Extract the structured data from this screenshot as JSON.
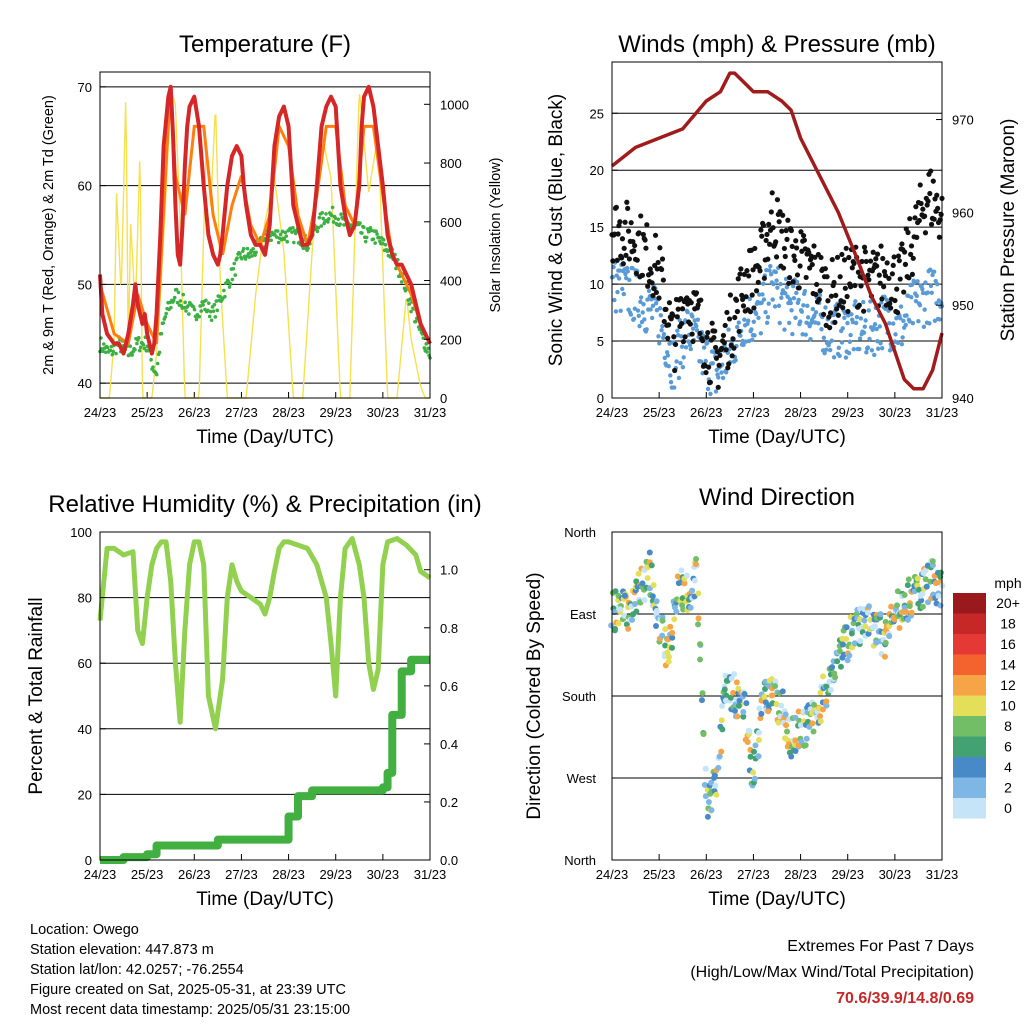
{
  "footer": {
    "location": "Location: Owego",
    "elevation": "Station elevation: 447.873 m",
    "latlon": "Station lat/lon: 42.0257; -76.2554",
    "created": "Figure created on Sat, 2025-05-31, at 23:39 UTC",
    "recent": "Most recent data timestamp: 2025/05/31 23:15:00"
  },
  "extremes": {
    "title": "Extremes For Past 7 Days",
    "subtitle": "(High/Low/Max Wind/Total Precipitation)",
    "values": "70.6/39.9/14.8/0.69",
    "value_color": "#c62828"
  },
  "chart_data": [
    {
      "id": "temperature",
      "type": "line",
      "title": "Temperature (F)",
      "xlabel": "Time (Day/UTC)",
      "ylabel": "2m & 9m T (Red, Orange) & 2m Td (Green)",
      "ylabel_right": "Solar Insolation (Yellow)",
      "x_ticks": [
        "24/23",
        "25/23",
        "26/23",
        "27/23",
        "28/23",
        "29/23",
        "30/23",
        "31/23"
      ],
      "xlim": [
        0,
        7
      ],
      "ylim": [
        38.5,
        71.5
      ],
      "ylim_right": [
        0,
        1110
      ],
      "y_ticks": [
        40,
        50,
        60,
        70
      ],
      "y_ticks_right": [
        0,
        200,
        400,
        600,
        800,
        1000
      ],
      "grid_y": [
        40,
        50,
        60,
        70
      ],
      "series": [
        {
          "color": "#d62728",
          "x": [
            0,
            0.05,
            0.15,
            0.3,
            0.4,
            0.5,
            0.55,
            0.6,
            0.7,
            0.75,
            0.8,
            0.85,
            0.9,
            0.95,
            1.0,
            1.05,
            1.1,
            1.15,
            1.2,
            1.28,
            1.35,
            1.45,
            1.5,
            1.55,
            1.6,
            1.65,
            1.7,
            1.75,
            1.8,
            1.85,
            1.9,
            2.0,
            2.1,
            2.2,
            2.3,
            2.4,
            2.5,
            2.55,
            2.6,
            2.7,
            2.8,
            2.9,
            3.0,
            3.05,
            3.1,
            3.2,
            3.3,
            3.4,
            3.5,
            3.6,
            3.65,
            3.7,
            3.8,
            3.9,
            4.0,
            4.05,
            4.1,
            4.2,
            4.3,
            4.4,
            4.5,
            4.6,
            4.7,
            4.8,
            4.9,
            5.0,
            5.05,
            5.1,
            5.2,
            5.3,
            5.4,
            5.5,
            5.55,
            5.6,
            5.7,
            5.8,
            5.9,
            6.0,
            6.1,
            6.2,
            6.3,
            6.4,
            6.5,
            6.6,
            6.7,
            6.8,
            6.9,
            7.0
          ],
          "y": [
            51,
            47,
            45,
            44,
            44,
            43,
            44,
            45,
            48,
            50,
            48,
            47,
            46,
            47,
            45,
            44,
            43,
            44,
            47,
            55,
            64,
            69,
            70,
            65,
            58,
            53,
            52,
            56,
            62,
            66,
            68,
            69,
            66,
            60,
            55,
            53,
            52,
            53,
            55,
            60,
            63,
            64,
            63,
            60,
            58,
            55,
            54,
            54,
            53,
            56,
            60,
            64,
            67,
            68,
            66,
            62,
            58,
            56,
            54,
            54,
            55,
            60,
            66,
            68,
            69,
            68,
            64,
            60,
            57,
            55,
            56,
            60,
            66,
            69,
            70,
            68,
            64,
            60,
            55,
            53,
            52,
            52,
            51,
            50,
            48,
            46,
            45,
            44
          ]
        },
        {
          "color": "#ff7f0e",
          "x": [
            0,
            0.3,
            0.6,
            0.8,
            1.0,
            1.2,
            1.4,
            1.5,
            1.6,
            1.8,
            2.0,
            2.2,
            2.4,
            2.6,
            2.8,
            3.0,
            3.2,
            3.4,
            3.6,
            3.8,
            4.0,
            4.2,
            4.4,
            4.6,
            4.8,
            5.0,
            5.2,
            5.4,
            5.6,
            5.8,
            6.0,
            6.2,
            6.4,
            6.6,
            6.8,
            7.0
          ],
          "y": [
            50,
            45,
            44,
            49,
            46,
            44,
            62,
            70,
            61,
            57,
            66,
            66,
            57,
            53,
            58,
            61,
            56,
            54,
            57,
            66,
            64,
            57,
            54,
            59,
            66,
            66,
            58,
            56,
            66,
            66,
            59,
            53,
            51,
            49,
            46,
            44
          ]
        },
        {
          "color": "#3cb043",
          "x": [
            0,
            0.2,
            0.4,
            0.6,
            0.8,
            1.0,
            1.1,
            1.2,
            1.3,
            1.4,
            1.5,
            1.6,
            1.8,
            2.0,
            2.2,
            2.4,
            2.6,
            2.8,
            3.0,
            3.2,
            3.4,
            3.6,
            3.8,
            4.0,
            4.2,
            4.4,
            4.6,
            4.8,
            5.0,
            5.2,
            5.4,
            5.6,
            5.8,
            6.0,
            6.2,
            6.4,
            6.6,
            6.8,
            7.0
          ],
          "y": [
            44,
            43,
            44,
            43,
            44,
            44,
            42,
            41,
            45,
            47,
            48,
            49,
            48,
            47,
            48,
            47,
            49,
            51,
            53,
            53,
            54,
            55,
            55,
            55,
            55,
            54,
            56,
            57,
            57,
            56,
            56,
            55,
            55,
            54,
            53,
            51,
            48,
            45,
            43
          ]
        },
        {
          "color": "#f5e050",
          "x": [
            0,
            0.2,
            0.3,
            0.35,
            0.45,
            0.55,
            0.6,
            0.65,
            0.75,
            0.85,
            0.9,
            1.1,
            1.2,
            1.3,
            1.4,
            1.5,
            1.6,
            1.7,
            1.8,
            2.1,
            2.25,
            2.35,
            2.45,
            2.55,
            2.7,
            3.1,
            3.3,
            3.5,
            3.7,
            3.9,
            4.1,
            4.3,
            4.5,
            4.7,
            4.9,
            5.1,
            5.3,
            5.5,
            5.7,
            5.9,
            6.1,
            6.3,
            6.5,
            6.6,
            6.7,
            6.8,
            6.9,
            7.0
          ],
          "y": [
            0,
            0,
            200,
            700,
            350,
            1050,
            150,
            600,
            300,
            850,
            0,
            0,
            150,
            400,
            700,
            1050,
            1000,
            600,
            0,
            0,
            850,
            650,
            1000,
            400,
            0,
            0,
            350,
            600,
            750,
            500,
            0,
            0,
            500,
            900,
            750,
            0,
            0,
            1050,
            700,
            900,
            0,
            0,
            350,
            200,
            120,
            40,
            0,
            0
          ]
        }
      ]
    },
    {
      "id": "winds",
      "type": "scatter",
      "title": "Winds (mph) & Pressure (mb)",
      "xlabel": "Time (Day/UTC)",
      "ylabel": "Sonic Wind & Gust (Blue, Black)",
      "ylabel_right": "Station Pressure (Maroon)",
      "x_ticks": [
        "24/23",
        "25/23",
        "26/23",
        "27/23",
        "28/23",
        "29/23",
        "30/23",
        "31/23"
      ],
      "xlim": [
        0,
        7
      ],
      "ylim": [
        0,
        29.5
      ],
      "ylim_right": [
        940,
        976.2
      ],
      "y_ticks": [
        0,
        5,
        10,
        15,
        20,
        25
      ],
      "y_ticks_right": [
        940,
        950,
        960,
        970
      ],
      "grid_y": [
        5,
        10,
        15,
        20,
        25
      ],
      "series": [
        {
          "name": "Wind",
          "color": "#5b9bd5",
          "x": [
            0,
            0.5,
            1.0,
            1.3,
            1.6,
            1.9,
            2.2,
            2.5,
            2.8,
            3.1,
            3.4,
            3.7,
            4.0,
            4.3,
            4.6,
            4.9,
            5.2,
            5.5,
            5.8,
            6.1,
            6.4,
            6.7,
            7.0
          ],
          "y": [
            10,
            9,
            7,
            3,
            6,
            4,
            2,
            4,
            7,
            7,
            10,
            8,
            8,
            7,
            6,
            6,
            6,
            6,
            7,
            6,
            8,
            9,
            9
          ]
        },
        {
          "name": "Gust",
          "color": "#111111",
          "x": [
            0,
            0.5,
            1.0,
            1.3,
            1.6,
            1.9,
            2.2,
            2.5,
            2.8,
            3.1,
            3.4,
            3.7,
            4.0,
            4.3,
            4.6,
            4.9,
            5.2,
            5.5,
            5.8,
            6.1,
            6.4,
            6.7,
            7.0
          ],
          "y": [
            15,
            14,
            11,
            5,
            9,
            6,
            3,
            6,
            10,
            11,
            16,
            13,
            12,
            11,
            9,
            10,
            11,
            10,
            11,
            10,
            14,
            18,
            16
          ]
        },
        {
          "name": "Pressure",
          "color": "#a01c1c",
          "x": [
            0,
            0.5,
            1.0,
            1.5,
            2.0,
            2.3,
            2.5,
            2.6,
            2.8,
            3.0,
            3.3,
            3.6,
            3.8,
            4.0,
            4.4,
            4.8,
            5.2,
            5.5,
            5.8,
            6.0,
            6.2,
            6.4,
            6.6,
            6.8,
            7.0
          ],
          "y": [
            965,
            967,
            968,
            969,
            972,
            973,
            975,
            975,
            974,
            973,
            973,
            972,
            971,
            968,
            964,
            960,
            955,
            951,
            948,
            945,
            942,
            941,
            941,
            943,
            947
          ]
        }
      ]
    },
    {
      "id": "humidity",
      "type": "line",
      "title": "Relative Humidity (%) & Precipitation (in)",
      "xlabel": "Time (Day/UTC)",
      "ylabel": "Percent & Total Rainfall",
      "x_ticks": [
        "24/23",
        "25/23",
        "26/23",
        "27/23",
        "28/23",
        "29/23",
        "30/23",
        "31/23"
      ],
      "xlim": [
        0,
        7
      ],
      "ylim": [
        0,
        100
      ],
      "ylim_right": [
        0,
        1.13
      ],
      "y_ticks": [
        0,
        20,
        40,
        60,
        80,
        100
      ],
      "y_ticks_right": [
        "0.0",
        "0.2",
        "0.4",
        "0.6",
        "0.8",
        "1.0"
      ],
      "grid_y": [
        20,
        40,
        60,
        80
      ],
      "series": [
        {
          "name": "RH",
          "color": "#92d050",
          "x": [
            0,
            0.15,
            0.3,
            0.5,
            0.7,
            0.8,
            0.9,
            1.0,
            1.1,
            1.2,
            1.3,
            1.4,
            1.5,
            1.6,
            1.7,
            1.8,
            1.9,
            2.0,
            2.1,
            2.2,
            2.3,
            2.45,
            2.6,
            2.7,
            2.8,
            2.9,
            3.0,
            3.2,
            3.4,
            3.5,
            3.6,
            3.7,
            3.8,
            3.9,
            4.0,
            4.2,
            4.4,
            4.6,
            4.8,
            4.9,
            5.0,
            5.1,
            5.2,
            5.35,
            5.5,
            5.6,
            5.7,
            5.8,
            5.9,
            6.0,
            6.1,
            6.3,
            6.5,
            6.7,
            6.8,
            7.0
          ],
          "y": [
            73,
            95,
            95,
            93,
            94,
            70,
            66,
            80,
            90,
            95,
            97,
            97,
            85,
            60,
            42,
            70,
            90,
            97,
            97,
            90,
            50,
            40,
            55,
            80,
            90,
            85,
            82,
            80,
            78,
            75,
            80,
            88,
            95,
            97,
            97,
            96,
            95,
            90,
            80,
            66,
            50,
            80,
            95,
            98,
            90,
            80,
            60,
            52,
            58,
            90,
            97,
            98,
            96,
            93,
            88,
            86
          ]
        },
        {
          "name": "Total Rainfall",
          "color": "#41b041",
          "x": [
            0,
            0.5,
            1.0,
            1.2,
            1.5,
            2.0,
            2.5,
            3.0,
            3.5,
            3.8,
            4.0,
            4.2,
            4.5,
            5.0,
            5.5,
            5.9,
            6.0,
            6.1,
            6.2,
            6.4,
            6.6,
            6.8,
            7.0
          ],
          "y": [
            0,
            0.01,
            0.02,
            0.05,
            0.05,
            0.05,
            0.07,
            0.07,
            0.07,
            0.07,
            0.15,
            0.22,
            0.24,
            0.24,
            0.24,
            0.24,
            0.25,
            0.3,
            0.5,
            0.65,
            0.69,
            0.69,
            0.69
          ]
        }
      ]
    },
    {
      "id": "direction",
      "type": "scatter",
      "title": "Wind Direction",
      "xlabel": "Time (Day/UTC)",
      "ylabel": "Direction (Colored By Speed)",
      "x_ticks": [
        "24/23",
        "25/23",
        "26/23",
        "27/23",
        "28/23",
        "29/23",
        "30/23",
        "31/23"
      ],
      "xlim": [
        0,
        7
      ],
      "ylim": [
        0,
        360
      ],
      "y_ticks": [
        "North",
        "East",
        "South",
        "West",
        "North"
      ],
      "grid_y": [
        90,
        180,
        270
      ],
      "legend_title": "mph",
      "legend_labels": [
        "20+",
        "18",
        "16",
        "14",
        "12",
        "10",
        "8",
        "6",
        "4",
        "2",
        "0"
      ],
      "legend_colors": [
        "#99191c",
        "#c62828",
        "#e53935",
        "#f4622d",
        "#f7a447",
        "#e3df58",
        "#72be66",
        "#42a272",
        "#4889c8",
        "#7eb7e6",
        "#c6e4f7"
      ],
      "series": [
        {
          "name": "Direction",
          "x": [
            0,
            0.2,
            0.4,
            0.6,
            0.8,
            1.0,
            1.2,
            1.4,
            1.6,
            1.8,
            2.0,
            2.2,
            2.4,
            2.6,
            2.8,
            3.0,
            3.2,
            3.4,
            3.6,
            3.8,
            4.0,
            4.2,
            4.4,
            4.6,
            4.8,
            5.0,
            5.2,
            5.4,
            5.6,
            5.8,
            6.0,
            6.2,
            6.4,
            6.6,
            6.8,
            7.0
          ],
          "y": [
            275,
            272,
            278,
            300,
            320,
            250,
            230,
            300,
            290,
            320,
            60,
            80,
            200,
            180,
            170,
            90,
            175,
            180,
            165,
            135,
            145,
            150,
            170,
            195,
            230,
            240,
            255,
            260,
            250,
            245,
            270,
            280,
            290,
            300,
            310,
            295
          ]
        }
      ]
    }
  ]
}
